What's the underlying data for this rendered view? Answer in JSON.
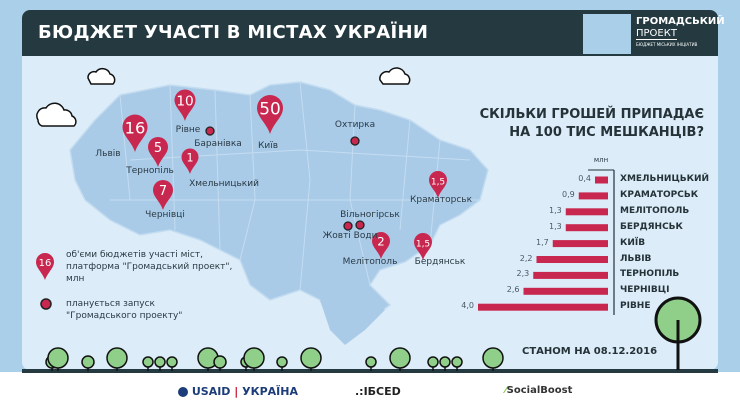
{
  "header": {
    "title": "БЮДЖЕТ УЧАСТІ В МІСТАХ УКРАЇНИ",
    "logo": {
      "line1": "ГРОМАДСЬКИЙ",
      "line2": "ПРОЕКТ",
      "line3": "БЮДЖЕТ МІСЬКИХ ІНІЦІАТИВ"
    }
  },
  "map": {
    "pins": [
      {
        "city": "Львів",
        "value": "16"
      },
      {
        "city": "Рівне",
        "value": "10"
      },
      {
        "city": "Тернопіль",
        "value": "5"
      },
      {
        "city": "Хмельницький",
        "value": "1"
      },
      {
        "city": "Чернівці",
        "value": "7"
      },
      {
        "city": "Київ",
        "value": "50"
      },
      {
        "city": "Краматорськ",
        "value": "1,5"
      },
      {
        "city": "Мелітополь",
        "value": "2"
      },
      {
        "city": "Бердянськ",
        "value": "1,5"
      }
    ],
    "planned": [
      "Баранівка",
      "Охтирка",
      "Вільногірськ",
      "Жовті Води"
    ],
    "pin_color": "#c8284f"
  },
  "legend": {
    "pin_value": "16",
    "pin_text": [
      "об'єми бюджетів участі міст,",
      "платформа \"Громадський проект\",",
      "млн"
    ],
    "dot_text": [
      "планується запуск",
      "\"Громадського проекту\""
    ]
  },
  "chart_data": {
    "type": "bar",
    "title": "СКІЛЬКИ ГРОШЕЙ ПРИПАДАЄ НА 100 ТИС МЕШКАНЦІВ?",
    "unit": "млн",
    "categories": [
      "ХМЕЛЬНИЦЬКИЙ",
      "КРАМАТОРСЬК",
      "МЕЛІТОПОЛЬ",
      "БЕРДЯНСЬК",
      "КИЇВ",
      "ЛЬВІВ",
      "ТЕРНОПІЛЬ",
      "ЧЕРНІВЦІ",
      "РІВНЕ"
    ],
    "values": [
      0.4,
      0.9,
      1.3,
      1.3,
      1.7,
      2.2,
      2.3,
      2.6,
      4.0
    ],
    "labels": [
      "0,4",
      "0,9",
      "1,3",
      "1,3",
      "1,7",
      "2,2",
      "2,3",
      "2,6",
      "4,0"
    ],
    "orientation": "horizontal",
    "color": "#c8284f"
  },
  "date": "СТАНОМ НА 08.12.2016",
  "footer": {
    "usaid": "USAID",
    "ukraine": "УКРАЇНА",
    "isef": ".:ІБСЕD",
    "socialboost": "SocialBoost"
  }
}
